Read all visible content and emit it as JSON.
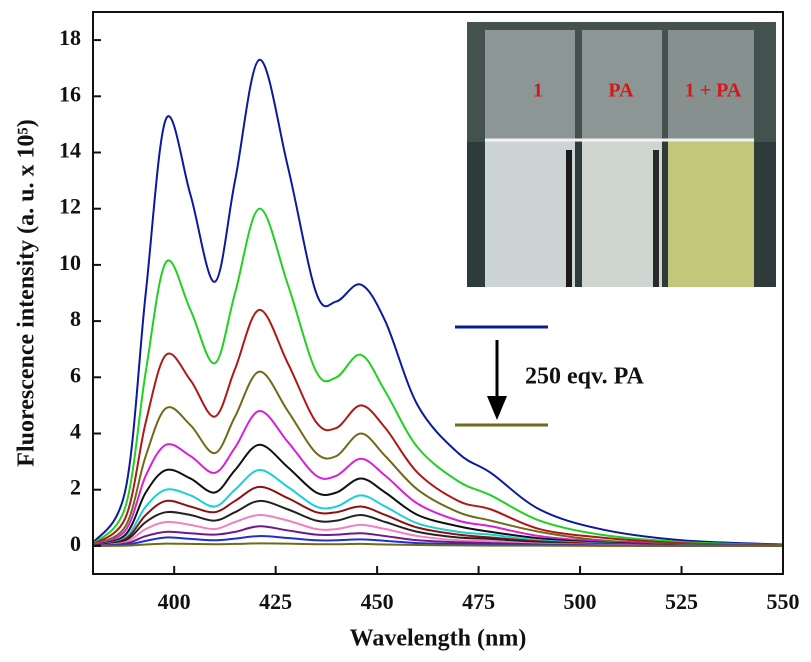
{
  "chart_data": {
    "type": "line",
    "x_label": "Wavelength (nm)",
    "y_label": "Fluorescence intensity (a. u. x 10⁵)",
    "annotation": "250 eqv. PA",
    "inset_labels": [
      "1",
      "PA",
      "1 + PA"
    ],
    "xlim": [
      380,
      550
    ],
    "ylim": [
      -1,
      19
    ],
    "xticks": [
      400,
      425,
      450,
      475,
      500,
      525,
      550
    ],
    "yticks": [
      0,
      2,
      4,
      6,
      8,
      10,
      12,
      14,
      16,
      18
    ],
    "x": [
      380,
      388,
      393,
      398,
      404,
      410,
      415,
      421,
      428,
      435,
      440,
      446,
      452,
      460,
      470,
      478,
      490,
      505,
      525,
      550
    ],
    "series": [
      {
        "color": "#0a1a9a",
        "values": [
          0.1,
          2.0,
          9.0,
          15.2,
          12.5,
          9.4,
          13.0,
          17.3,
          13.5,
          9.0,
          8.7,
          9.3,
          8.0,
          5.0,
          3.3,
          2.6,
          1.3,
          0.6,
          0.2,
          0.05
        ]
      },
      {
        "color": "#22d022",
        "values": [
          0.07,
          1.4,
          6.2,
          10.1,
          8.4,
          6.5,
          9.0,
          12.0,
          9.3,
          6.2,
          6.0,
          6.8,
          5.5,
          3.5,
          2.3,
          1.8,
          0.9,
          0.4,
          0.14,
          0.03
        ]
      },
      {
        "color": "#b01818",
        "values": [
          0.05,
          1.0,
          4.4,
          6.8,
          5.9,
          4.6,
          6.3,
          8.4,
          6.5,
          4.4,
          4.2,
          5.0,
          4.2,
          2.6,
          1.6,
          1.3,
          0.6,
          0.3,
          0.1,
          0.02
        ]
      },
      {
        "color": "#6e6a18",
        "values": [
          0.04,
          0.7,
          3.2,
          4.9,
          4.3,
          3.3,
          4.6,
          6.2,
          4.8,
          3.3,
          3.2,
          4.0,
          3.2,
          2.0,
          1.2,
          0.9,
          0.5,
          0.2,
          0.07,
          0.02
        ]
      },
      {
        "color": "#d820d8",
        "values": [
          0.03,
          0.55,
          2.5,
          3.6,
          3.2,
          2.6,
          3.5,
          4.8,
          3.7,
          2.5,
          2.5,
          3.1,
          2.5,
          1.5,
          0.9,
          0.7,
          0.35,
          0.16,
          0.05,
          0.01
        ]
      },
      {
        "color": "#101010",
        "values": [
          0.02,
          0.4,
          1.9,
          2.7,
          2.4,
          1.9,
          2.7,
          3.6,
          2.8,
          1.9,
          1.9,
          2.4,
          1.9,
          1.1,
          0.7,
          0.5,
          0.27,
          0.12,
          0.04,
          0.01
        ]
      },
      {
        "color": "#18d0d8",
        "values": [
          0.02,
          0.3,
          1.4,
          2.0,
          1.8,
          1.4,
          2.0,
          2.7,
          2.1,
          1.4,
          1.4,
          1.8,
          1.4,
          0.8,
          0.5,
          0.4,
          0.2,
          0.09,
          0.03,
          0.01
        ]
      },
      {
        "color": "#901010",
        "values": [
          0.01,
          0.25,
          1.1,
          1.6,
          1.4,
          1.2,
          1.6,
          2.1,
          1.7,
          1.2,
          1.2,
          1.4,
          1.1,
          0.65,
          0.4,
          0.3,
          0.16,
          0.07,
          0.02,
          0.01
        ]
      },
      {
        "color": "#222222",
        "values": [
          0.01,
          0.2,
          0.85,
          1.2,
          1.1,
          0.9,
          1.2,
          1.6,
          1.3,
          0.9,
          0.9,
          1.1,
          0.85,
          0.5,
          0.3,
          0.25,
          0.12,
          0.05,
          0.02,
          0.01
        ]
      },
      {
        "color": "#f080c0",
        "values": [
          0,
          0.13,
          0.6,
          0.85,
          0.75,
          0.6,
          0.85,
          1.1,
          0.9,
          0.6,
          0.6,
          0.75,
          0.6,
          0.35,
          0.2,
          0.17,
          0.08,
          0.04,
          0.01,
          0
        ]
      },
      {
        "color": "#701890",
        "values": [
          0,
          0.08,
          0.35,
          0.5,
          0.45,
          0.4,
          0.5,
          0.7,
          0.55,
          0.4,
          0.4,
          0.45,
          0.35,
          0.2,
          0.13,
          0.1,
          0.05,
          0.02,
          0.01,
          0
        ]
      },
      {
        "color": "#2030d0",
        "values": [
          0,
          0.04,
          0.18,
          0.3,
          0.25,
          0.2,
          0.26,
          0.35,
          0.28,
          0.2,
          0.2,
          0.23,
          0.18,
          0.1,
          0.07,
          0.05,
          0.03,
          0.01,
          0,
          0
        ]
      },
      {
        "color": "#6e6a18",
        "values": [
          0,
          0.01,
          0.05,
          0.08,
          0.07,
          0.06,
          0.07,
          0.09,
          0.08,
          0.06,
          0.06,
          0.07,
          0.05,
          0.03,
          0.02,
          0.01,
          0.01,
          0,
          0,
          0
        ]
      }
    ]
  }
}
